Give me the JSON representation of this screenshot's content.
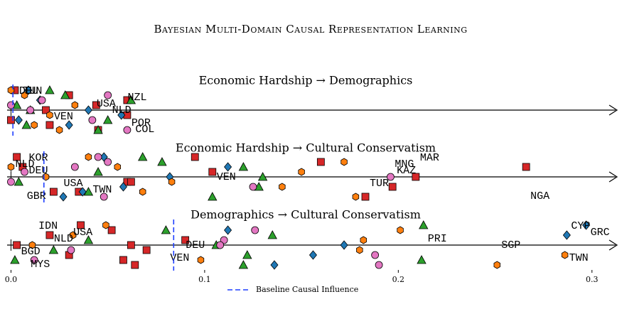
{
  "title": "Bayesian Multi-Domain Causal Representation Learning",
  "axis": {
    "xlim": [
      -0.002,
      0.31
    ],
    "xticks": [
      {
        "value": 0,
        "label": "0.0"
      },
      0.1,
      0.2,
      0.3
    ]
  },
  "legend": {
    "label": "Baseline Causal Influence",
    "color": "#1f3fff"
  },
  "chart_data": [
    {
      "type": "scatter",
      "title": "Economic Hardship → Demographics",
      "baseline": 0.001,
      "series": [
        {
          "marker": "square",
          "color": "#d62728",
          "values": [
            0.002,
            0.02,
            0.06,
            0.044,
            0.03,
            0.045,
            0.0,
            0.018,
            0.06
          ]
        },
        {
          "marker": "triangle",
          "color": "#2ca02c",
          "values": [
            0.003,
            0.028,
            0.045,
            0.05,
            0.01,
            0.062,
            0.02,
            0.008
          ]
        },
        {
          "marker": "diamond",
          "color": "#1f77b4",
          "values": [
            0.004,
            0.04,
            0.015,
            0.009,
            0.03,
            0.057
          ]
        },
        {
          "marker": "hexagon",
          "color": "#ff7f0e",
          "values": [
            0.0,
            0.012,
            0.02,
            0.033,
            0.007,
            0.025
          ]
        },
        {
          "marker": "circle",
          "color": "#e377c2",
          "values": [
            0.0,
            0.05,
            0.06,
            0.042,
            0.01,
            0.016
          ]
        }
      ],
      "annotations": [
        {
          "text": "TUN",
          "x": 0.004
        },
        {
          "text": "POR",
          "x": 0.06
        },
        {
          "text": "NLD",
          "x": 0.05
        },
        {
          "text": "NZL",
          "x": 0.058
        },
        {
          "text": "COL",
          "x": 0.062
        },
        {
          "text": "VEN",
          "x": 0.02
        },
        {
          "text": "USA",
          "x": 0.042
        },
        {
          "text": "DEU",
          "x": 0.002
        }
      ]
    },
    {
      "type": "scatter",
      "title": "Economic Hardship → Cultural Conservatism",
      "baseline": 0.017,
      "series": [
        {
          "marker": "square",
          "color": "#d62728",
          "values": [
            0.006,
            0.003,
            0.022,
            0.06,
            0.104,
            0.16,
            0.183,
            0.197,
            0.209,
            0.266,
            0.095,
            0.035,
            0.062
          ]
        },
        {
          "marker": "triangle",
          "color": "#2ca02c",
          "values": [
            0.004,
            0.045,
            0.078,
            0.104,
            0.128,
            0.13,
            0.12,
            0.068,
            0.04
          ]
        },
        {
          "marker": "diamond",
          "color": "#1f77b4",
          "values": [
            0.027,
            0.058,
            0.082,
            0.112,
            0.048,
            0.037
          ]
        },
        {
          "marker": "hexagon",
          "color": "#ff7f0e",
          "values": [
            0.0,
            0.04,
            0.068,
            0.083,
            0.15,
            0.172,
            0.178,
            0.14,
            0.018,
            0.055
          ]
        },
        {
          "marker": "circle",
          "color": "#e377c2",
          "values": [
            0.0,
            0.007,
            0.05,
            0.048,
            0.125,
            0.196,
            0.033,
            0.045
          ]
        }
      ],
      "annotations": [
        {
          "text": "NLD",
          "x": 0.0
        },
        {
          "text": "GBR",
          "x": 0.006
        },
        {
          "text": "USA",
          "x": 0.025
        },
        {
          "text": "DEU",
          "x": 0.007
        },
        {
          "text": "KOR",
          "x": 0.007
        },
        {
          "text": "TWN",
          "x": 0.04
        },
        {
          "text": "VEN",
          "x": 0.104
        },
        {
          "text": "MNG",
          "x": 0.196
        },
        {
          "text": "NGA",
          "x": 0.266
        },
        {
          "text": "TUR",
          "x": 0.183
        },
        {
          "text": "KAZ",
          "x": 0.197
        },
        {
          "text": "MAR",
          "x": 0.209
        }
      ]
    },
    {
      "type": "scatter",
      "title": "Demographics → Cultural Conservatism",
      "baseline": 0.084,
      "series": [
        {
          "marker": "square",
          "color": "#d62728",
          "values": [
            0.003,
            0.02,
            0.036,
            0.058,
            0.07,
            0.09,
            0.052,
            0.064,
            0.03,
            0.062
          ]
        },
        {
          "marker": "triangle",
          "color": "#2ca02c",
          "values": [
            0.002,
            0.022,
            0.04,
            0.08,
            0.12,
            0.122,
            0.106,
            0.135,
            0.213,
            0.212
          ]
        },
        {
          "marker": "diamond",
          "color": "#1f77b4",
          "values": [
            0.112,
            0.136,
            0.156,
            0.172,
            0.287,
            0.297
          ]
        },
        {
          "marker": "hexagon",
          "color": "#ff7f0e",
          "values": [
            0.011,
            0.032,
            0.049,
            0.098,
            0.18,
            0.182,
            0.201,
            0.251,
            0.286
          ]
        },
        {
          "marker": "circle",
          "color": "#e377c2",
          "values": [
            0.012,
            0.031,
            0.11,
            0.126,
            0.19,
            0.188,
            0.108
          ]
        }
      ],
      "annotations": [
        {
          "text": "NLD",
          "x": 0.02
        },
        {
          "text": "IDN",
          "x": 0.012
        },
        {
          "text": "VEN",
          "x": 0.08
        },
        {
          "text": "DEU",
          "x": 0.088
        },
        {
          "text": "USA",
          "x": 0.03
        },
        {
          "text": "MYS",
          "x": 0.008
        },
        {
          "text": "BGD",
          "x": 0.003
        },
        {
          "text": "PRI",
          "x": 0.213
        },
        {
          "text": "CYP",
          "x": 0.287
        },
        {
          "text": "TWN",
          "x": 0.286
        },
        {
          "text": "SGP",
          "x": 0.251
        },
        {
          "text": "GRC",
          "x": 0.297
        }
      ]
    }
  ]
}
